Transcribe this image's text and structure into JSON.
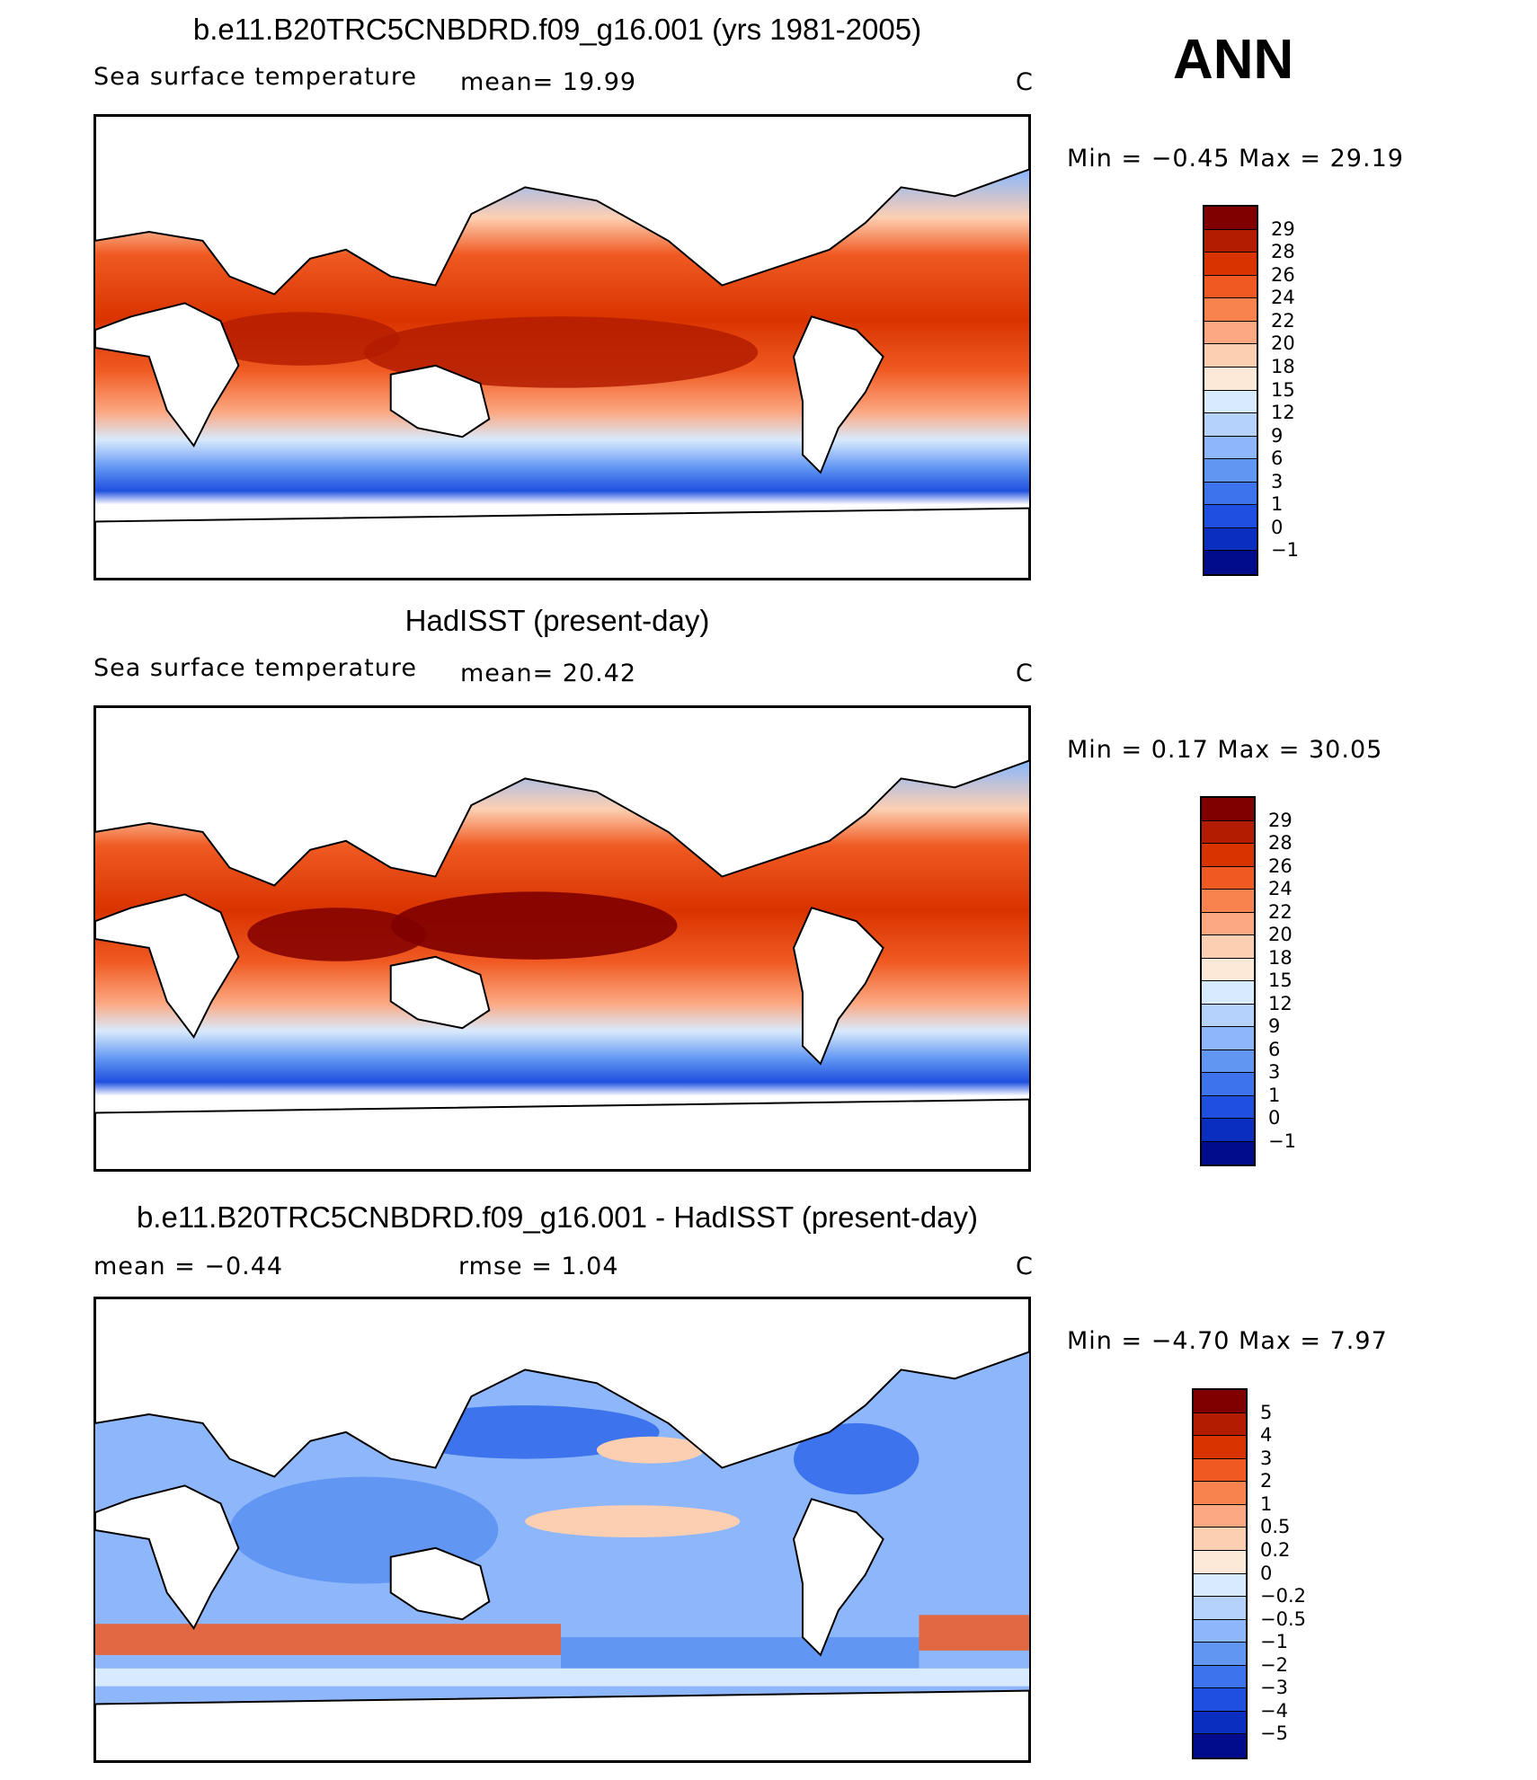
{
  "season": "ANN",
  "panels": [
    {
      "title": "b.e11.B20TRC5CNBDRD.f09_g16.001 (yrs 1981-2005)",
      "variable": "Sea surface temperature",
      "stat1": "mean=   19.99",
      "stat2": "",
      "units": "C",
      "minmax": "Min =   −0.45 Max =   29.19",
      "colorbar": {
        "colors": [
          "#800000",
          "#b31c00",
          "#d93300",
          "#f05a22",
          "#f9834f",
          "#fca882",
          "#fdcfb2",
          "#fde9d8",
          "#d8eafd",
          "#b4d2fc",
          "#8db7fa",
          "#6296f3",
          "#3d74ed",
          "#1f4fe0",
          "#0a2ec0",
          "#000c8c"
        ],
        "labels": [
          "29",
          "28",
          "26",
          "24",
          "22",
          "20",
          "18",
          "15",
          "12",
          "9",
          "6",
          "3",
          "1",
          "0",
          "−1"
        ]
      }
    },
    {
      "title": "HadISST (present-day)",
      "variable": "Sea surface temperature",
      "stat1": "mean=   20.42",
      "stat2": "",
      "units": "C",
      "minmax": "Min =    0.17 Max =   30.05",
      "colorbar": {
        "colors": [
          "#800000",
          "#b31c00",
          "#d93300",
          "#f05a22",
          "#f9834f",
          "#fca882",
          "#fdcfb2",
          "#fde9d8",
          "#d8eafd",
          "#b4d2fc",
          "#8db7fa",
          "#6296f3",
          "#3d74ed",
          "#1f4fe0",
          "#0a2ec0",
          "#000c8c"
        ],
        "labels": [
          "29",
          "28",
          "26",
          "24",
          "22",
          "20",
          "18",
          "15",
          "12",
          "9",
          "6",
          "3",
          "1",
          "0",
          "−1"
        ]
      }
    },
    {
      "title": "b.e11.B20TRC5CNBDRD.f09_g16.001 - HadISST (present-day)",
      "variable": "",
      "stat1": "mean =   −0.44",
      "stat2": "rmse =    1.04",
      "units": "C",
      "minmax": "Min =   −4.70 Max =    7.97",
      "colorbar": {
        "colors": [
          "#800000",
          "#b31c00",
          "#d93300",
          "#f05a22",
          "#f9834f",
          "#fca882",
          "#fdcfb2",
          "#fde9d8",
          "#d8eafd",
          "#b4d2fc",
          "#8db7fa",
          "#6296f3",
          "#3d74ed",
          "#1f4fe0",
          "#0a2ec0",
          "#000c8c"
        ],
        "labels": [
          "5",
          "4",
          "3",
          "2",
          "1",
          "0.5",
          "0.2",
          "0",
          "−0.2",
          "−0.5",
          "−1",
          "−2",
          "−3",
          "−4",
          "−5"
        ]
      }
    }
  ]
}
